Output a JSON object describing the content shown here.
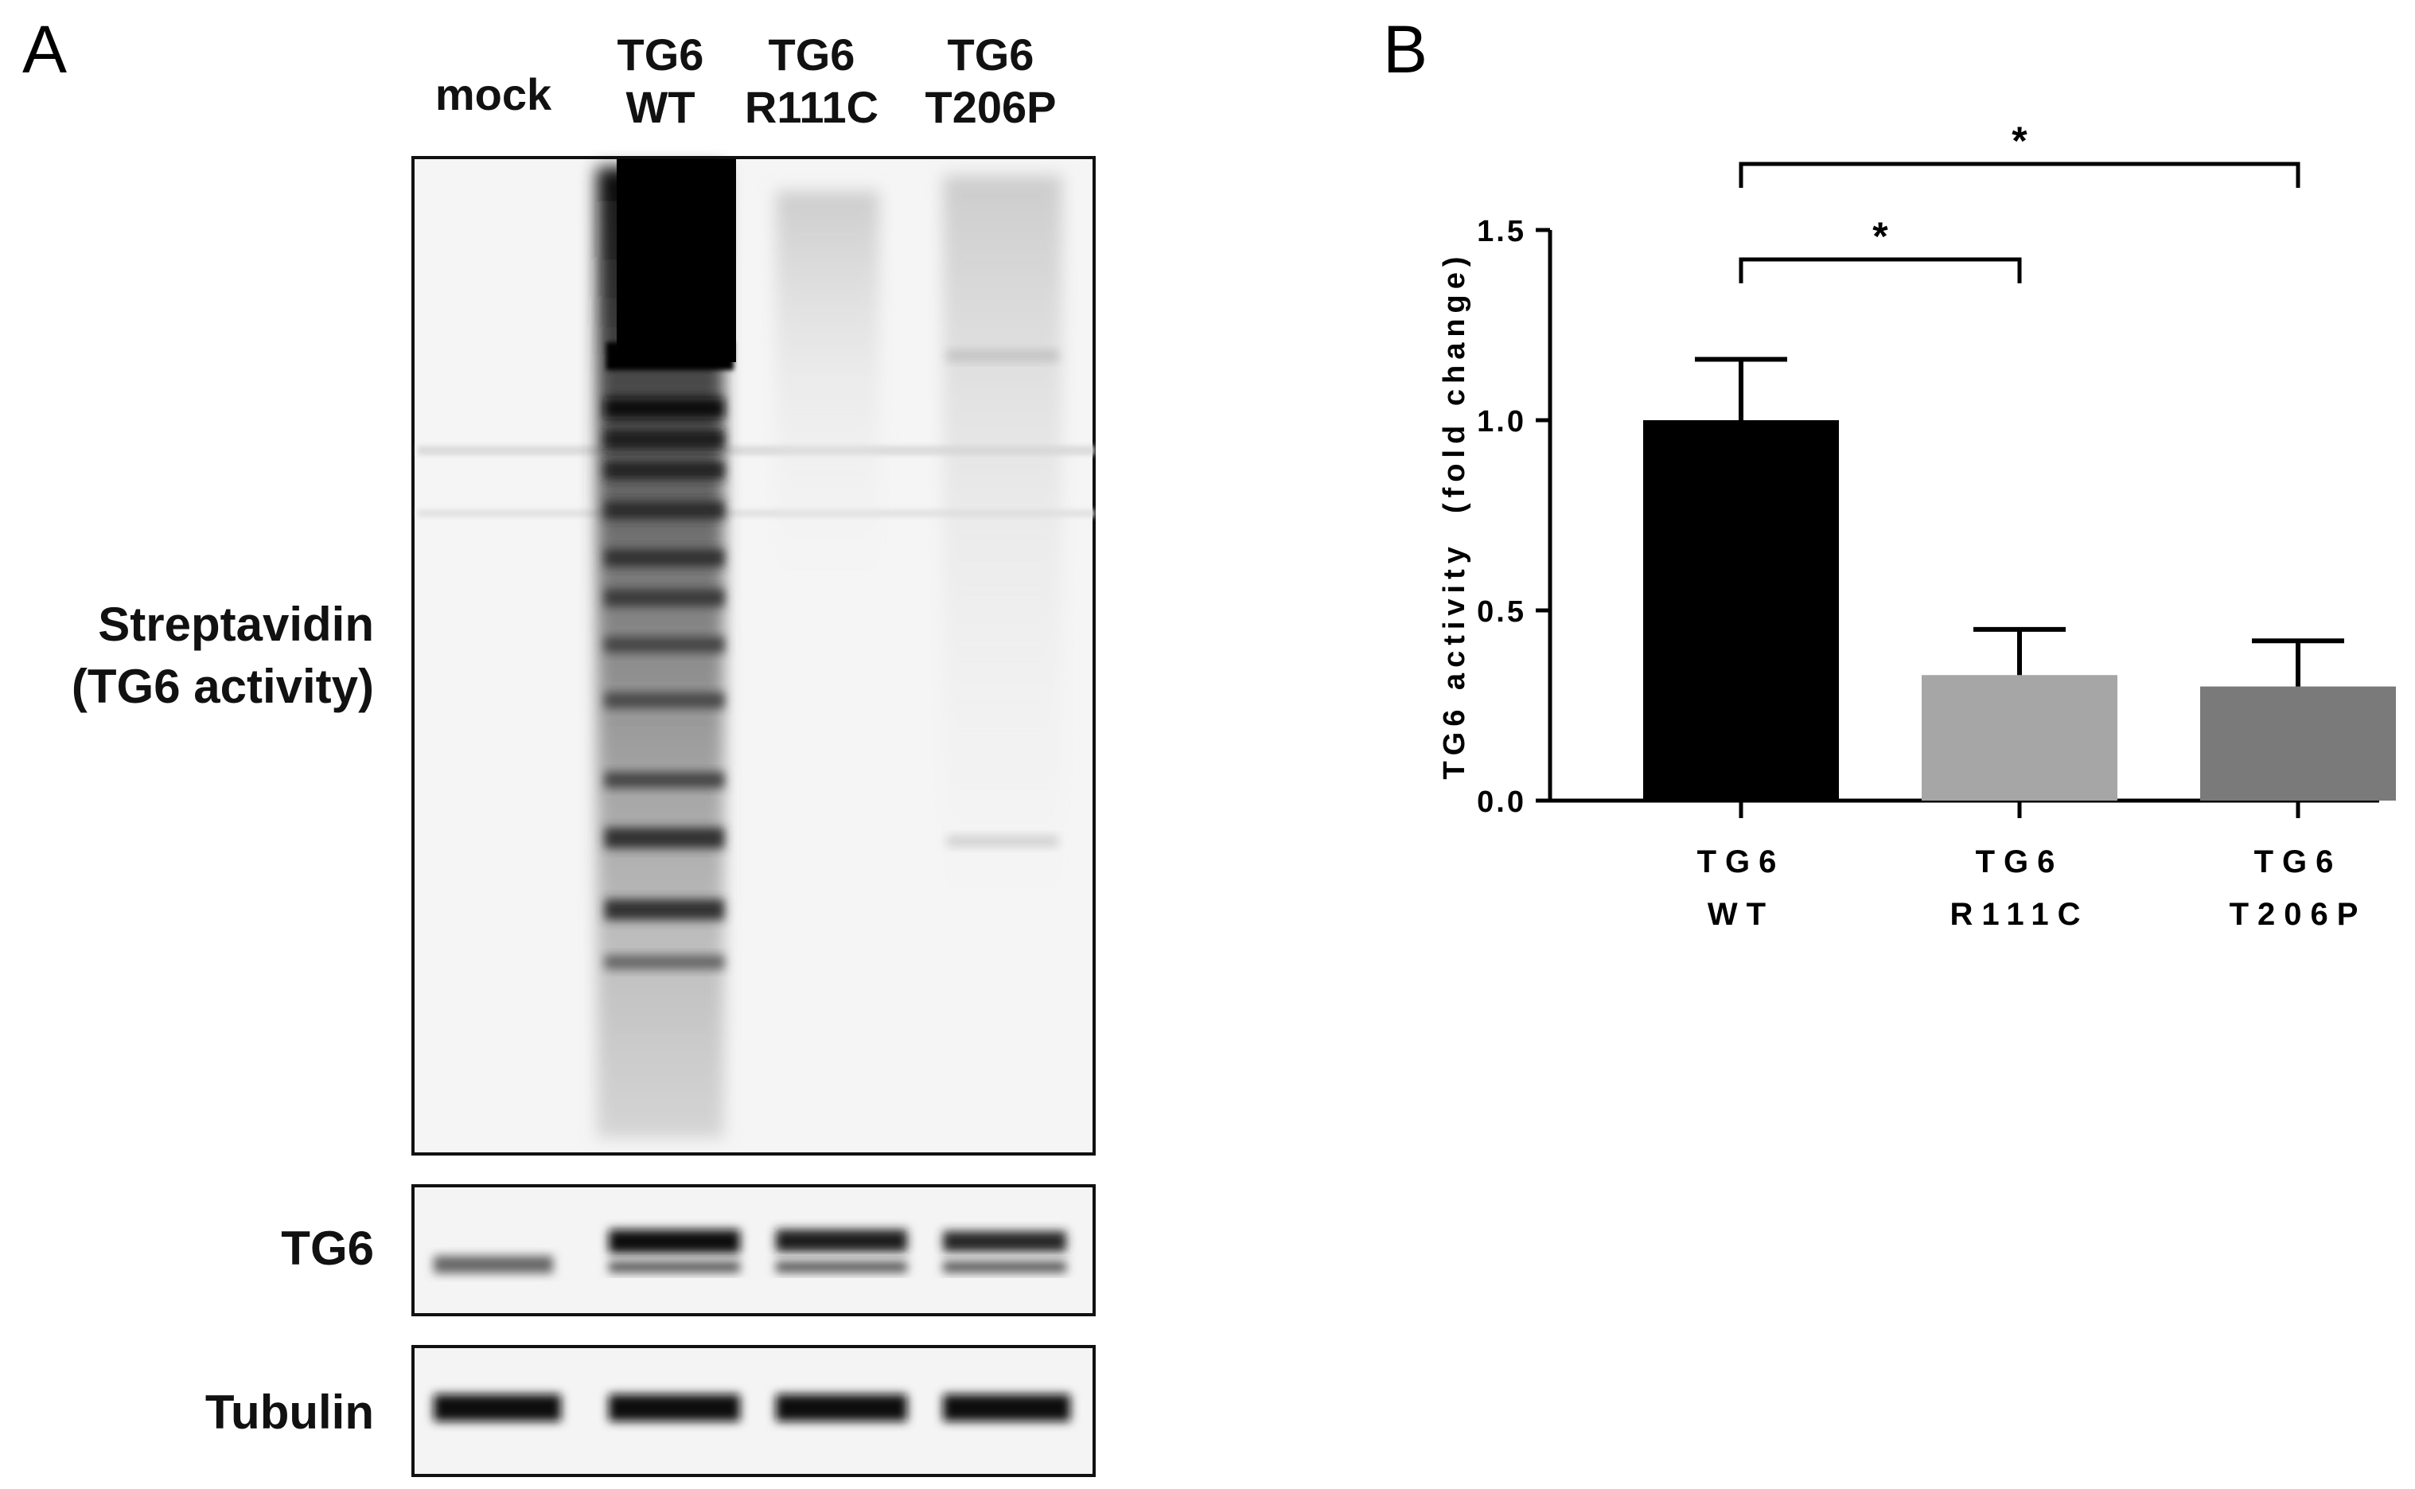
{
  "panel_a": {
    "letter": "A",
    "lanes": [
      {
        "line1": "mock",
        "line2": ""
      },
      {
        "line1": "TG6",
        "line2": "WT"
      },
      {
        "line1": "TG6",
        "line2": "R111C"
      },
      {
        "line1": "TG6",
        "line2": "T206P"
      }
    ],
    "blots": [
      {
        "label_line1": "Streptavidin",
        "label_line2": "(TG6 activity)"
      },
      {
        "label_line1": "TG6",
        "label_line2": ""
      },
      {
        "label_line1": "Tubulin",
        "label_line2": ""
      }
    ]
  },
  "panel_b": {
    "letter": "B"
  },
  "chart_data": {
    "type": "bar",
    "categories": [
      "TG6\nWT",
      "TG6\nR111C",
      "TG6\nT206P"
    ],
    "category_lines": [
      [
        "TG6",
        "WT"
      ],
      [
        "TG6",
        "R111C"
      ],
      [
        "TG6",
        "T206P"
      ]
    ],
    "values": [
      1.0,
      0.33,
      0.3
    ],
    "errors": [
      0.16,
      0.12,
      0.12
    ],
    "bar_colors": [
      "#000000",
      "#a6a6a6",
      "#7a7a7a"
    ],
    "ylabel": "TG6 activity  (fold change)",
    "xlabel": "",
    "ylim": [
      0,
      1.5
    ],
    "yticks": [
      "0.0",
      "0.5",
      "1.0",
      "1.5"
    ],
    "significance": [
      {
        "from": 0,
        "to": 1,
        "label": "*"
      },
      {
        "from": 0,
        "to": 2,
        "label": "*"
      }
    ],
    "grid": false
  }
}
